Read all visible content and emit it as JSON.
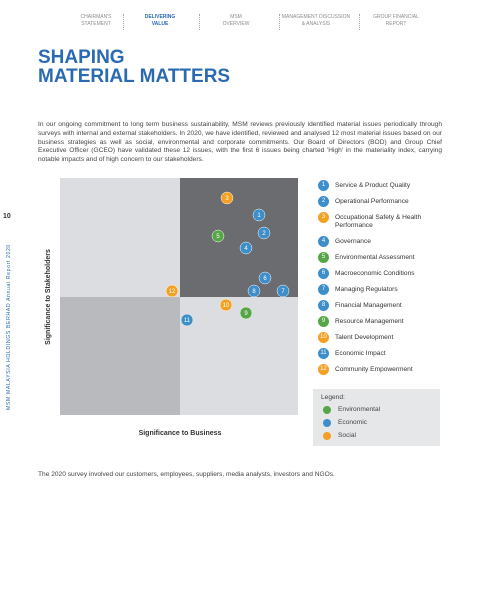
{
  "header": {
    "nav": [
      {
        "label": [
          "CHAIRMAN'S",
          "STATEMENT"
        ],
        "active": false
      },
      {
        "label": [
          "DELIVERING",
          "VALUE"
        ],
        "active": true
      },
      {
        "label": [
          "MSM",
          "OVERVIEW"
        ],
        "active": false
      },
      {
        "label": [
          "MANAGEMENT DISCUSSION",
          "& ANALYSIS"
        ],
        "active": false
      },
      {
        "label": [
          "GROUP FINANCIAL",
          "REPORT"
        ],
        "active": false
      }
    ],
    "title": [
      "SHAPING",
      "MATERIAL MATTERS"
    ]
  },
  "page_number": "10",
  "side_text": "MSM MALAYSIA HOLDINGS BERHAD  Annual Report 2020",
  "intro": "In our ongoing commitment to long term business sustainability, MSM reviews previously identified material issues periodically through surveys with internal and external stakeholders. In 2020, we have identified, reviewed and analysed 12 most material issues based on our business strategies as well as social, environmental and corporate commitments. Our Board of Directors (BOD) and Group Chief Executive Officer (GCEO) have validated these 12 issues, with the first 6 issues being charted 'High' in the materiality index, carrying notable impacts and of high concern to our stakeholders.",
  "matrix": {
    "x_label": "Significance to Business",
    "y_label": "Significance to Stakeholders",
    "issues": [
      {
        "number": 1,
        "label": "Service & Product Quality",
        "category": "Economic"
      },
      {
        "number": 2,
        "label": "Operational Performance",
        "category": "Economic"
      },
      {
        "number": 3,
        "label": "Occupational Safety & Health Performance",
        "category": "Social"
      },
      {
        "number": 4,
        "label": "Governance",
        "category": "Economic"
      },
      {
        "number": 5,
        "label": "Environmental Assessment",
        "category": "Environmental"
      },
      {
        "number": 6,
        "label": "Macroeconomic Conditions",
        "category": "Economic"
      },
      {
        "number": 7,
        "label": "Managing Regulators",
        "category": "Economic"
      },
      {
        "number": 8,
        "label": "Financial Management",
        "category": "Economic"
      },
      {
        "number": 9,
        "label": "Resource Management",
        "category": "Environmental"
      },
      {
        "number": 10,
        "label": "Talent Development",
        "category": "Social"
      },
      {
        "number": 11,
        "label": "Economic Impact",
        "category": "Economic"
      },
      {
        "number": 12,
        "label": "Community Empowerment",
        "category": "Social"
      }
    ],
    "legend": {
      "title": "Legend:",
      "items": [
        {
          "name": "Environmental",
          "color": "#55a646"
        },
        {
          "name": "Economic",
          "color": "#3d8ec9"
        },
        {
          "name": "Social",
          "color": "#f4a023"
        }
      ]
    }
  },
  "footnote": "The 2020 survey involved our customers, employees, suppliers, media analysts, investors and NGOs."
}
